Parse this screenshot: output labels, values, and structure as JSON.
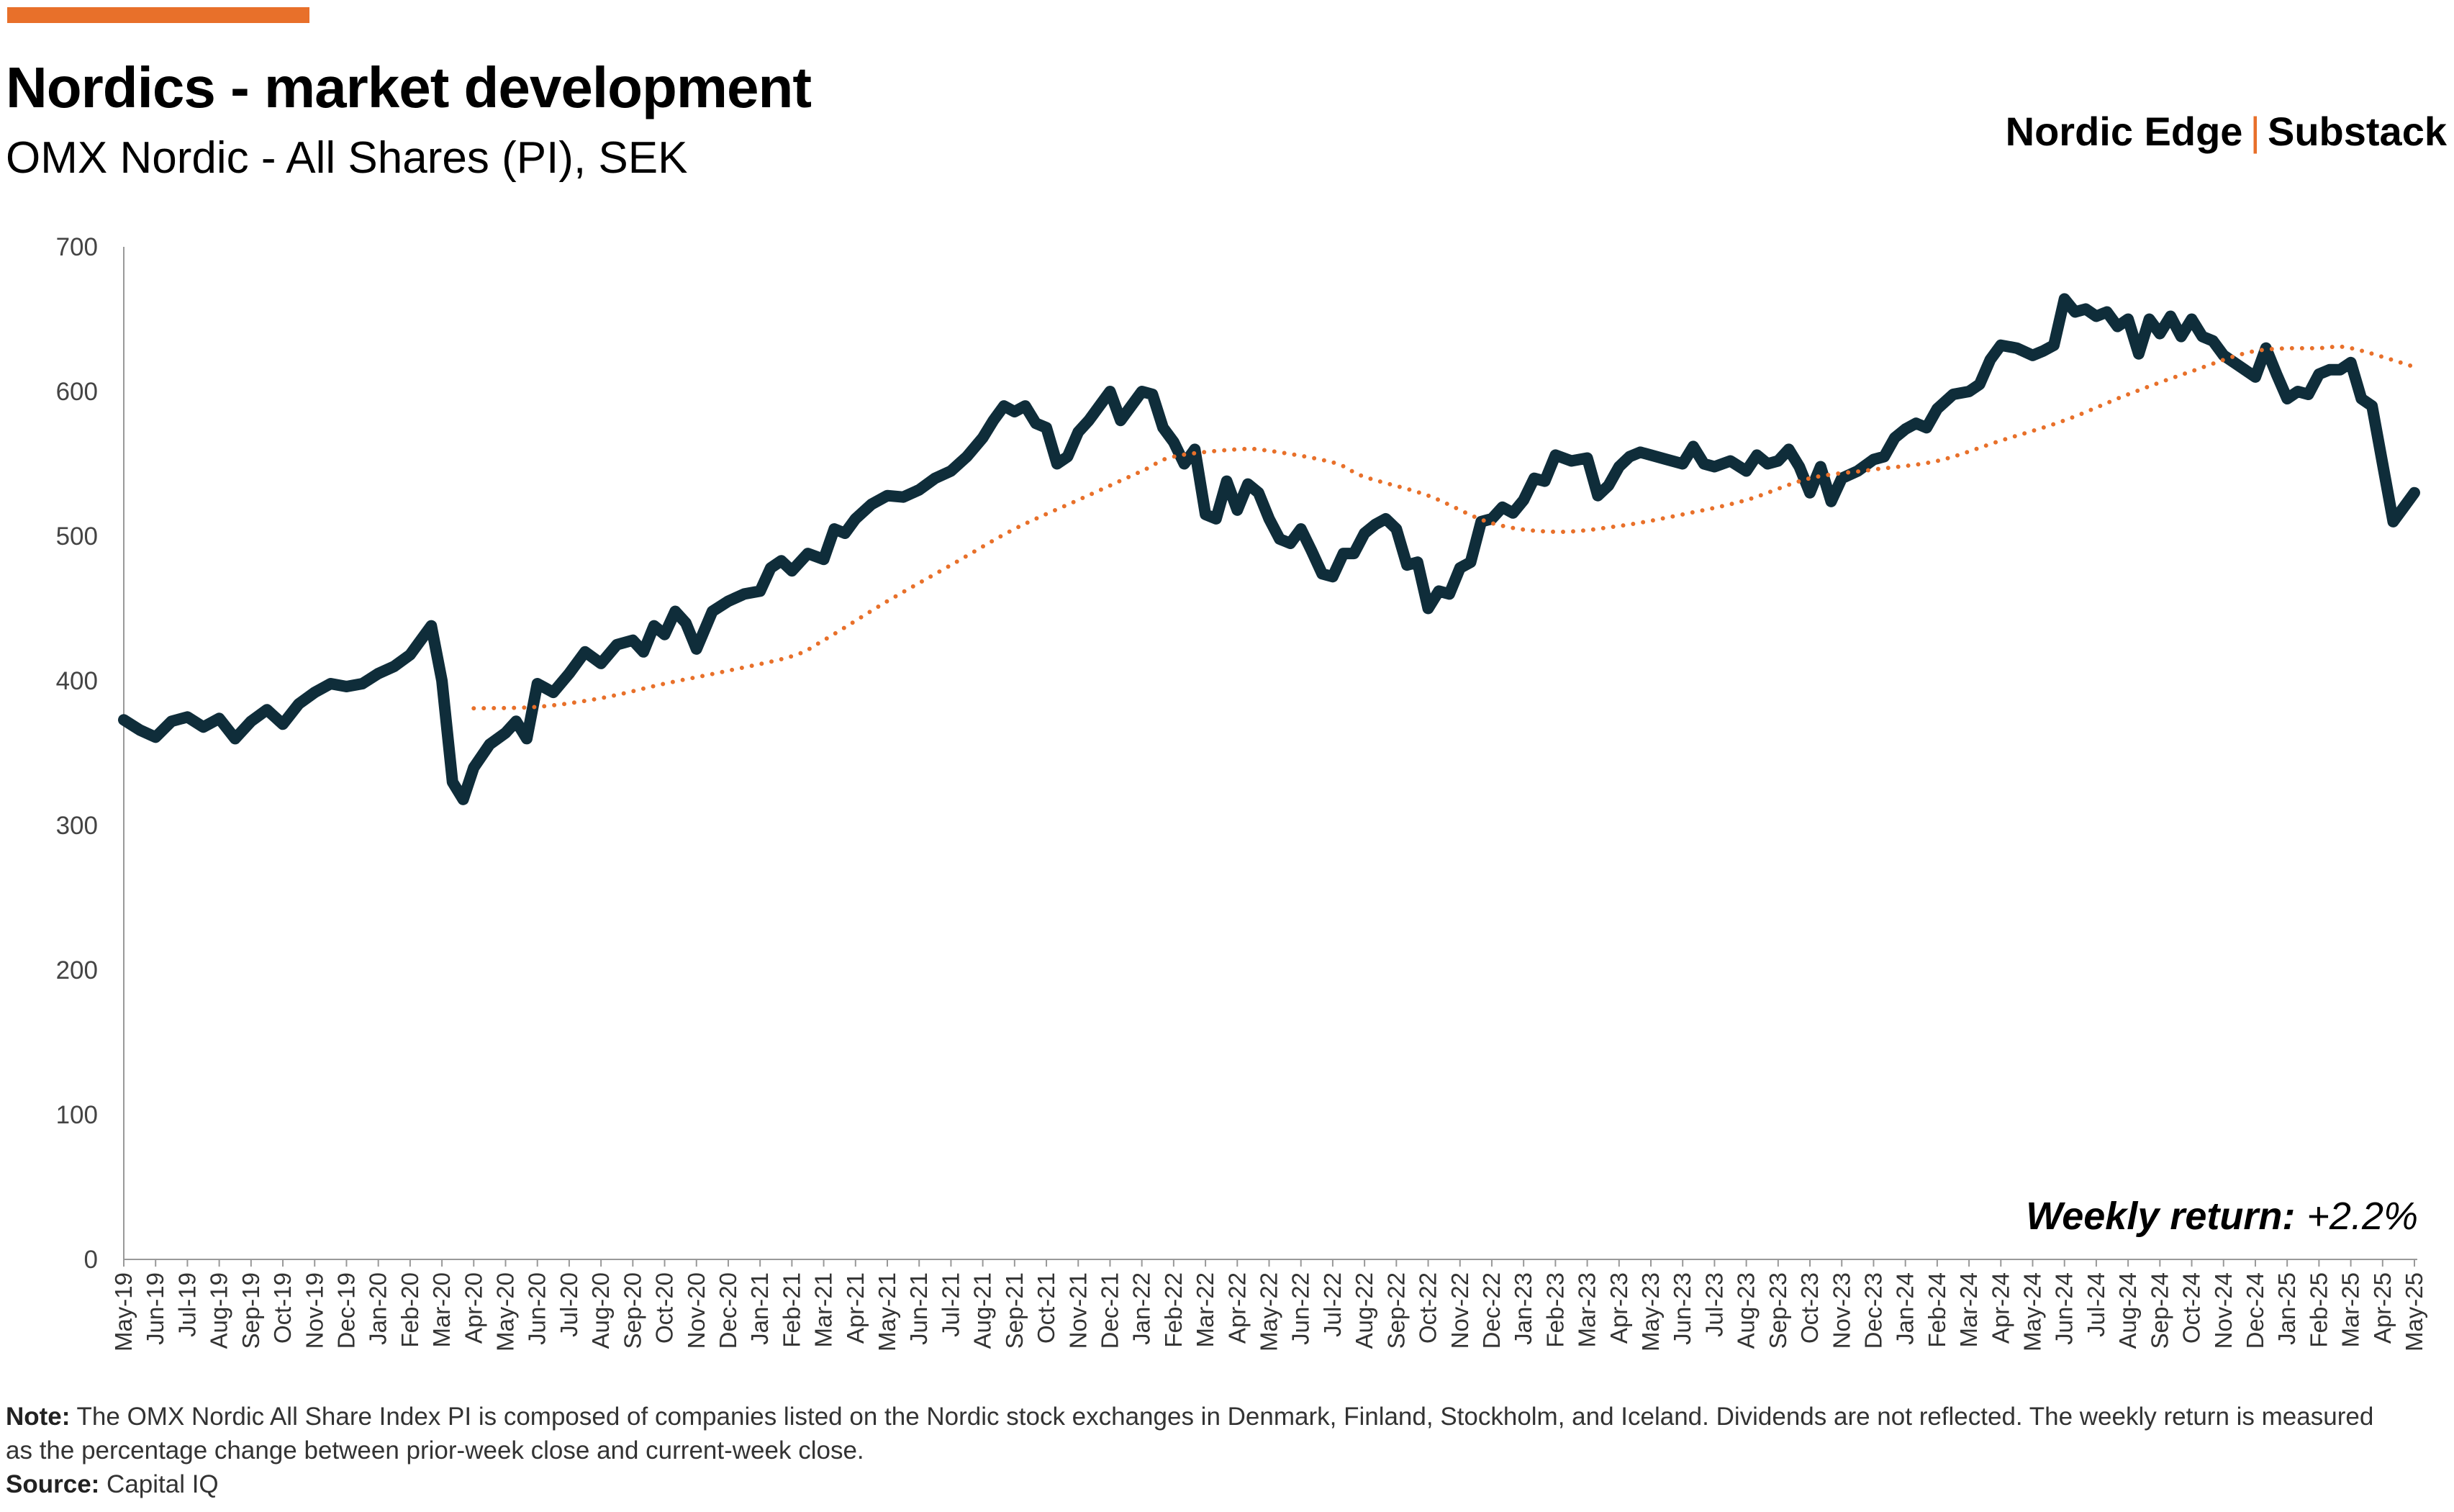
{
  "header": {
    "title": "Nordics - market development",
    "subtitle": "OMX Nordic - All Shares (PI), SEK"
  },
  "brand": {
    "left": "Nordic Edge",
    "separator": "|",
    "right": "Substack"
  },
  "annotation": {
    "label": "Weekly return:",
    "value": "+2.2%"
  },
  "footer": {
    "note_label": "Note:",
    "note_text": " The OMX Nordic All Share Index PI is composed of companies listed on the Nordic stock exchanges in Denmark, Finland, Stockholm, and Iceland. Dividends are not reflected. The weekly return is measured as the percentage change between prior-week close and current-week close.",
    "source_label": "Source:",
    "source_text": " Capital IQ"
  },
  "colors": {
    "accent": "#E8702A",
    "index_line": "#0F2D3A",
    "trend_line": "#E8702A",
    "axis": "#999999"
  },
  "chart_data": {
    "type": "line",
    "title": "Nordics - market development",
    "subtitle": "OMX Nordic - All Shares (PI), SEK",
    "ylim": [
      0,
      700
    ],
    "yticks": [
      "0",
      "100",
      "200",
      "300",
      "400",
      "500",
      "600",
      "700"
    ],
    "grid": false,
    "xticks": [
      "May-19",
      "Jun-19",
      "Jul-19",
      "Aug-19",
      "Sep-19",
      "Oct-19",
      "Nov-19",
      "Dec-19",
      "Jan-20",
      "Feb-20",
      "Mar-20",
      "Apr-20",
      "May-20",
      "Jun-20",
      "Jul-20",
      "Aug-20",
      "Sep-20",
      "Oct-20",
      "Nov-20",
      "Dec-20",
      "Jan-21",
      "Feb-21",
      "Mar-21",
      "Apr-21",
      "May-21",
      "Jun-21",
      "Jul-21",
      "Aug-21",
      "Sep-21",
      "Oct-21",
      "Nov-21",
      "Dec-21",
      "Jan-22",
      "Feb-22",
      "Mar-22",
      "Apr-22",
      "May-22",
      "Jun-22",
      "Jul-22",
      "Aug-22",
      "Sep-22",
      "Oct-22",
      "Nov-22",
      "Dec-22",
      "Jan-23",
      "Feb-23",
      "Mar-23",
      "Apr-23",
      "May-23",
      "Jun-23",
      "Jul-23",
      "Aug-23",
      "Sep-23",
      "Oct-23",
      "Nov-23",
      "Dec-23",
      "Jan-24",
      "Feb-24",
      "Mar-24",
      "Apr-24",
      "May-24",
      "Jun-24",
      "Jul-24",
      "Aug-24",
      "Sep-24",
      "Oct-24",
      "Nov-24",
      "Dec-24",
      "Jan-25",
      "Feb-25",
      "Mar-25",
      "Apr-25",
      "May-25"
    ],
    "series": [
      {
        "style": "solid",
        "points": [
          [
            "May-19",
            373
          ],
          [
            "May-19",
            366
          ],
          [
            "Jun-19",
            361
          ],
          [
            "Jun-19",
            372
          ],
          [
            "Jul-19",
            375
          ],
          [
            "Jul-19",
            368
          ],
          [
            "Aug-19",
            374
          ],
          [
            "Aug-19",
            360
          ],
          [
            "Sep-19",
            372
          ],
          [
            "Sep-19",
            380
          ],
          [
            "Oct-19",
            370
          ],
          [
            "Oct-19",
            384
          ],
          [
            "Nov-19",
            392
          ],
          [
            "Nov-19",
            398
          ],
          [
            "Dec-19",
            396
          ],
          [
            "Dec-19",
            398
          ],
          [
            "Jan-20",
            405
          ],
          [
            "Jan-20",
            410
          ],
          [
            "Feb-20",
            418
          ],
          [
            "Feb-20",
            428
          ],
          [
            "Feb-20",
            438
          ],
          [
            "Mar-20",
            400
          ],
          [
            "Mar-20",
            330
          ],
          [
            "Mar-20",
            318
          ],
          [
            "Apr-20",
            340
          ],
          [
            "Apr-20",
            356
          ],
          [
            "May-20",
            364
          ],
          [
            "May-20",
            372
          ],
          [
            "May-20",
            360
          ],
          [
            "Jun-20",
            398
          ],
          [
            "Jun-20",
            392
          ],
          [
            "Jul-20",
            405
          ],
          [
            "Jul-20",
            420
          ],
          [
            "Aug-20",
            412
          ],
          [
            "Aug-20",
            425
          ],
          [
            "Sep-20",
            428
          ],
          [
            "Sep-20",
            420
          ],
          [
            "Sep-20",
            438
          ],
          [
            "Oct-20",
            432
          ],
          [
            "Oct-20",
            448
          ],
          [
            "Oct-20",
            440
          ],
          [
            "Nov-20",
            422
          ],
          [
            "Nov-20",
            448
          ],
          [
            "Dec-20",
            455
          ],
          [
            "Dec-20",
            460
          ],
          [
            "Jan-21",
            462
          ],
          [
            "Jan-21",
            478
          ],
          [
            "Jan-21",
            483
          ],
          [
            "Feb-21",
            476
          ],
          [
            "Feb-21",
            488
          ],
          [
            "Mar-21",
            484
          ],
          [
            "Mar-21",
            505
          ],
          [
            "Mar-21",
            502
          ],
          [
            "Apr-21",
            512
          ],
          [
            "Apr-21",
            522
          ],
          [
            "May-21",
            528
          ],
          [
            "May-21",
            527
          ],
          [
            "Jun-21",
            532
          ],
          [
            "Jun-21",
            540
          ],
          [
            "Jul-21",
            545
          ],
          [
            "Jul-21",
            555
          ],
          [
            "Aug-21",
            568
          ],
          [
            "Aug-21",
            580
          ],
          [
            "Aug-21",
            590
          ],
          [
            "Sep-21",
            586
          ],
          [
            "Sep-21",
            590
          ],
          [
            "Sep-21",
            578
          ],
          [
            "Oct-21",
            575
          ],
          [
            "Oct-21",
            550
          ],
          [
            "Oct-21",
            555
          ],
          [
            "Nov-21",
            572
          ],
          [
            "Nov-21",
            580
          ],
          [
            "Nov-21",
            590
          ],
          [
            "Dec-21",
            600
          ],
          [
            "Dec-21",
            580
          ],
          [
            "Dec-21",
            590
          ],
          [
            "Jan-22",
            600
          ],
          [
            "Jan-22",
            598
          ],
          [
            "Jan-22",
            575
          ],
          [
            "Feb-22",
            565
          ],
          [
            "Feb-22",
            550
          ],
          [
            "Feb-22",
            560
          ],
          [
            "Mar-22",
            515
          ],
          [
            "Mar-22",
            512
          ],
          [
            "Mar-22",
            538
          ],
          [
            "Apr-22",
            518
          ],
          [
            "Apr-22",
            536
          ],
          [
            "Apr-22",
            530
          ],
          [
            "May-22",
            512
          ],
          [
            "May-22",
            498
          ],
          [
            "May-22",
            495
          ],
          [
            "Jun-22",
            505
          ],
          [
            "Jun-22",
            490
          ],
          [
            "Jun-22",
            474
          ],
          [
            "Jul-22",
            472
          ],
          [
            "Jul-22",
            488
          ],
          [
            "Jul-22",
            488
          ],
          [
            "Aug-22",
            502
          ],
          [
            "Aug-22",
            508
          ],
          [
            "Aug-22",
            512
          ],
          [
            "Sep-22",
            505
          ],
          [
            "Sep-22",
            480
          ],
          [
            "Sep-22",
            482
          ],
          [
            "Oct-22",
            450
          ],
          [
            "Oct-22",
            462
          ],
          [
            "Oct-22",
            460
          ],
          [
            "Nov-22",
            478
          ],
          [
            "Nov-22",
            482
          ],
          [
            "Nov-22",
            510
          ],
          [
            "Dec-22",
            512
          ],
          [
            "Dec-22",
            520
          ],
          [
            "Dec-22",
            516
          ],
          [
            "Jan-23",
            525
          ],
          [
            "Jan-23",
            540
          ],
          [
            "Jan-23",
            538
          ],
          [
            "Feb-23",
            556
          ],
          [
            "Feb-23",
            552
          ],
          [
            "Mar-23",
            554
          ],
          [
            "Mar-23",
            528
          ],
          [
            "Mar-23",
            535
          ],
          [
            "Apr-23",
            548
          ],
          [
            "Apr-23",
            555
          ],
          [
            "Apr-23",
            558
          ],
          [
            "May-23",
            556
          ],
          [
            "May-23",
            553
          ],
          [
            "Jun-23",
            550
          ],
          [
            "Jun-23",
            562
          ],
          [
            "Jun-23",
            550
          ],
          [
            "Jul-23",
            548
          ],
          [
            "Jul-23",
            552
          ],
          [
            "Aug-23",
            545
          ],
          [
            "Aug-23",
            556
          ],
          [
            "Aug-23",
            550
          ],
          [
            "Sep-23",
            552
          ],
          [
            "Sep-23",
            560
          ],
          [
            "Sep-23",
            548
          ],
          [
            "Oct-23",
            530
          ],
          [
            "Oct-23",
            548
          ],
          [
            "Oct-23",
            524
          ],
          [
            "Nov-23",
            540
          ],
          [
            "Nov-23",
            545
          ],
          [
            "Dec-23",
            553
          ],
          [
            "Dec-23",
            555
          ],
          [
            "Dec-23",
            568
          ],
          [
            "Jan-24",
            574
          ],
          [
            "Jan-24",
            578
          ],
          [
            "Jan-24",
            575
          ],
          [
            "Feb-24",
            588
          ],
          [
            "Feb-24",
            598
          ],
          [
            "Mar-24",
            600
          ],
          [
            "Mar-24",
            605
          ],
          [
            "Mar-24",
            622
          ],
          [
            "Apr-24",
            632
          ],
          [
            "Apr-24",
            630
          ],
          [
            "May-24",
            625
          ],
          [
            "May-24",
            628
          ],
          [
            "May-24",
            632
          ],
          [
            "Jun-24",
            664
          ],
          [
            "Jun-24",
            655
          ],
          [
            "Jun-24",
            657
          ],
          [
            "Jul-24",
            652
          ],
          [
            "Jul-24",
            655
          ],
          [
            "Jul-24",
            645
          ],
          [
            "Aug-24",
            650
          ],
          [
            "Aug-24",
            626
          ],
          [
            "Aug-24",
            650
          ],
          [
            "Sep-24",
            640
          ],
          [
            "Sep-24",
            652
          ],
          [
            "Sep-24",
            638
          ],
          [
            "Oct-24",
            650
          ],
          [
            "Oct-24",
            638
          ],
          [
            "Oct-24",
            635
          ],
          [
            "Nov-24",
            625
          ],
          [
            "Nov-24",
            620
          ],
          [
            "Nov-24",
            615
          ],
          [
            "Dec-24",
            610
          ],
          [
            "Dec-24",
            630
          ],
          [
            "Dec-24",
            612
          ],
          [
            "Jan-25",
            595
          ],
          [
            "Jan-25",
            600
          ],
          [
            "Jan-25",
            598
          ],
          [
            "Feb-25",
            612
          ],
          [
            "Feb-25",
            615
          ],
          [
            "Feb-25",
            615
          ],
          [
            "Mar-25",
            620
          ],
          [
            "Mar-25",
            595
          ],
          [
            "Mar-25",
            590
          ],
          [
            "Apr-25",
            550
          ],
          [
            "Apr-25",
            510
          ],
          [
            "Apr-25",
            520
          ],
          [
            "May-25",
            530
          ]
        ]
      },
      {
        "style": "dotted",
        "points": [
          [
            "Apr-20",
            381
          ],
          [
            "Jun-20",
            382
          ],
          [
            "Aug-20",
            388
          ],
          [
            "Oct-20",
            398
          ],
          [
            "Dec-20",
            407
          ],
          [
            "Feb-21",
            417
          ],
          [
            "Mar-21",
            428
          ],
          [
            "May-21",
            455
          ],
          [
            "Jul-21",
            480
          ],
          [
            "Sep-21",
            505
          ],
          [
            "Nov-21",
            525
          ],
          [
            "Jan-22",
            545
          ],
          [
            "Feb-22",
            555
          ],
          [
            "Apr-22",
            560
          ],
          [
            "May-22",
            559
          ],
          [
            "Jul-22",
            551
          ],
          [
            "Aug-22",
            541
          ],
          [
            "Oct-22",
            528
          ],
          [
            "Dec-22",
            509
          ],
          [
            "Feb-23",
            503
          ],
          [
            "Apr-23",
            507
          ],
          [
            "Jun-23",
            515
          ],
          [
            "Aug-23",
            525
          ],
          [
            "Oct-23",
            540
          ],
          [
            "Dec-23",
            546
          ],
          [
            "Feb-24",
            552
          ],
          [
            "Apr-24",
            566
          ],
          [
            "Jun-24",
            580
          ],
          [
            "Aug-24",
            598
          ],
          [
            "Oct-24",
            614
          ],
          [
            "Dec-24",
            628
          ],
          [
            "Feb-25",
            630
          ],
          [
            "Mar-25",
            630
          ],
          [
            "May-25",
            617
          ]
        ]
      }
    ]
  }
}
